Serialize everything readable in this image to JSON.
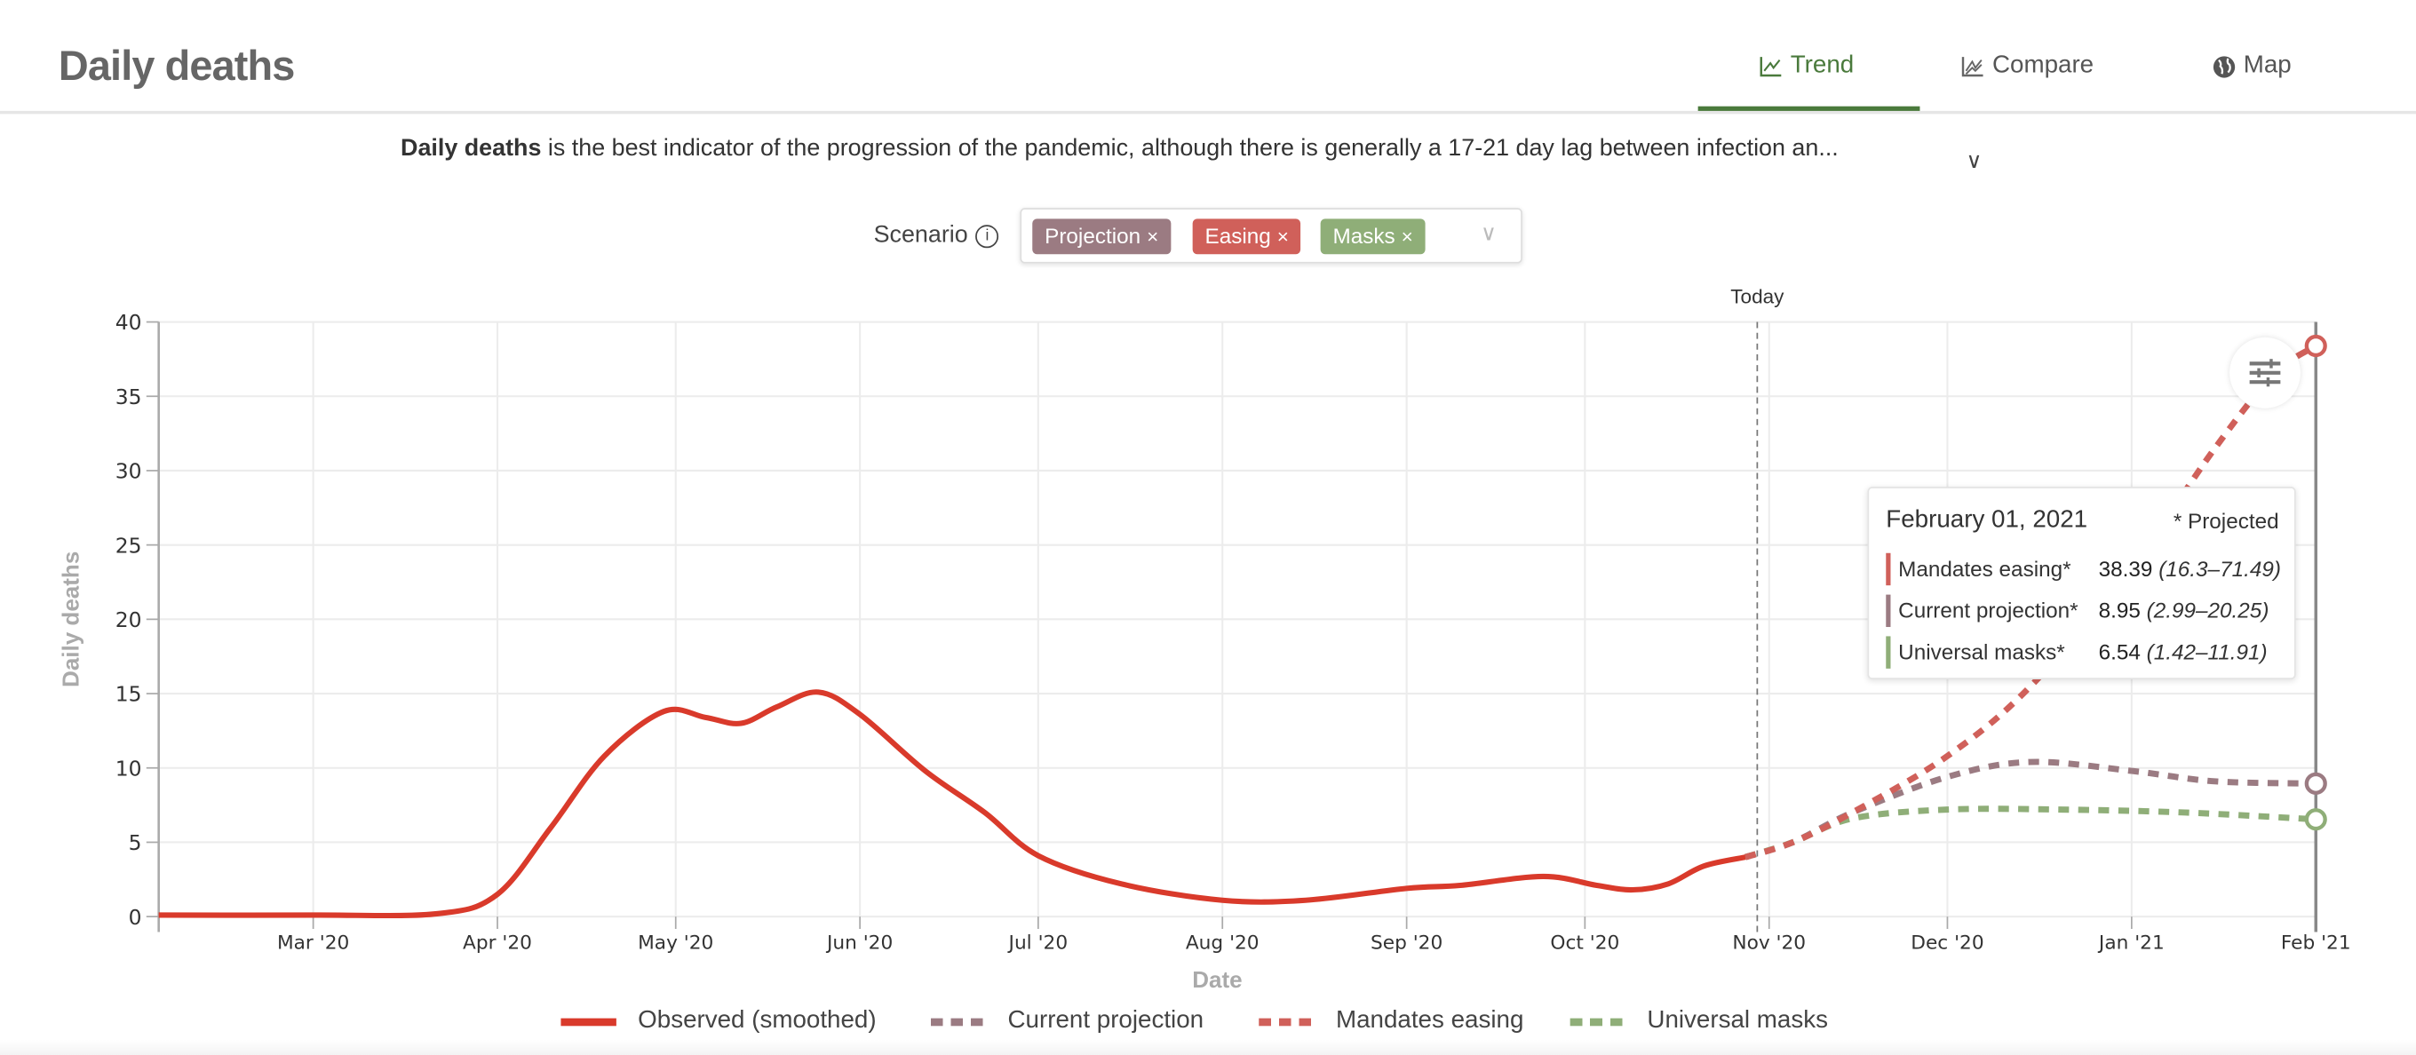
{
  "header": {
    "title": "Daily deaths",
    "tabs": [
      {
        "label": "Trend",
        "icon": "line-chart-icon",
        "active": true
      },
      {
        "label": "Compare",
        "icon": "area-chart-icon"
      },
      {
        "label": "Map",
        "icon": "globe-icon"
      }
    ]
  },
  "description": {
    "bold": "Daily deaths",
    "text": " is the best indicator of the progression of the pandemic, although there is generally a 17-21 day lag between infection an...",
    "expand": "∨"
  },
  "scenario": {
    "label": "Scenario",
    "info": "i",
    "chips": [
      {
        "label": "Projection",
        "color": "#9b7b82"
      },
      {
        "label": "Easing",
        "color": "#d0605a"
      },
      {
        "label": "Masks",
        "color": "#8fae78"
      }
    ],
    "remove": "×",
    "caret": "∨"
  },
  "tooltip": {
    "date": "February 01, 2021",
    "note": "* Projected",
    "rows": [
      {
        "name": "Mandates easing*",
        "value": "38.39",
        "range": "(16.3–71.49)",
        "color": "#d0605a"
      },
      {
        "name": "Current projection*",
        "value": "8.95",
        "range": "(2.99–20.25)",
        "color": "#9b7b82"
      },
      {
        "name": "Universal masks*",
        "value": "6.54",
        "range": "(1.42–11.91)",
        "color": "#8fae78"
      }
    ]
  },
  "chart_data": {
    "type": "line",
    "xlabel": "Date",
    "ylabel": "Daily deaths",
    "ylim": [
      0,
      40
    ],
    "xlim": [
      "2020-02-04",
      "2021-02-01"
    ],
    "yticks": [
      "0",
      "5",
      "10",
      "15",
      "20",
      "25",
      "30",
      "35",
      "40"
    ],
    "xticks": [
      {
        "date": "2020-03-01",
        "label": "Mar '20"
      },
      {
        "date": "2020-04-01",
        "label": "Apr '20"
      },
      {
        "date": "2020-05-01",
        "label": "May '20"
      },
      {
        "date": "2020-06-01",
        "label": "Jun '20"
      },
      {
        "date": "2020-07-01",
        "label": "Jul '20"
      },
      {
        "date": "2020-08-01",
        "label": "Aug '20"
      },
      {
        "date": "2020-09-01",
        "label": "Sep '20"
      },
      {
        "date": "2020-10-01",
        "label": "Oct '20"
      },
      {
        "date": "2020-11-01",
        "label": "Nov '20"
      },
      {
        "date": "2020-12-01",
        "label": "Dec '20"
      },
      {
        "date": "2021-01-01",
        "label": "Jan '21"
      },
      {
        "date": "2021-02-01",
        "label": "Feb '21"
      }
    ],
    "today": {
      "date": "2020-10-30",
      "label": "Today"
    },
    "grid": true,
    "legend": "bottom",
    "series": [
      {
        "name": "Observed (smoothed)",
        "color": "#d93a2b",
        "dashed": false,
        "points": [
          [
            "2020-02-04",
            0.1
          ],
          [
            "2020-03-01",
            0.1
          ],
          [
            "2020-03-22",
            0.2
          ],
          [
            "2020-04-01",
            1.5
          ],
          [
            "2020-04-10",
            6
          ],
          [
            "2020-04-19",
            10.8
          ],
          [
            "2020-04-29",
            13.8
          ],
          [
            "2020-05-06",
            13.4
          ],
          [
            "2020-05-12",
            13.0
          ],
          [
            "2020-05-18",
            14.1
          ],
          [
            "2020-05-25",
            15.1
          ],
          [
            "2020-06-01",
            13.6
          ],
          [
            "2020-06-12",
            9.8
          ],
          [
            "2020-06-22",
            7.0
          ],
          [
            "2020-07-01",
            4.1
          ],
          [
            "2020-07-15",
            2.2
          ],
          [
            "2020-08-01",
            1.1
          ],
          [
            "2020-08-15",
            1.1
          ],
          [
            "2020-09-01",
            1.9
          ],
          [
            "2020-09-10",
            2.1
          ],
          [
            "2020-09-24",
            2.7
          ],
          [
            "2020-10-03",
            2.1
          ],
          [
            "2020-10-09",
            1.8
          ],
          [
            "2020-10-15",
            2.2
          ],
          [
            "2020-10-21",
            3.4
          ],
          [
            "2020-10-28",
            4.0
          ]
        ]
      },
      {
        "name": "Current projection",
        "color": "#9b7b82",
        "dashed": true,
        "points": [
          [
            "2020-10-28",
            4.0
          ],
          [
            "2020-11-05",
            5.0
          ],
          [
            "2020-11-15",
            7.0
          ],
          [
            "2020-12-01",
            9.4
          ],
          [
            "2020-12-15",
            10.4
          ],
          [
            "2021-01-01",
            9.8
          ],
          [
            "2021-01-15",
            9.1
          ],
          [
            "2021-02-01",
            8.95
          ]
        ]
      },
      {
        "name": "Mandates easing",
        "color": "#d0605a",
        "dashed": true,
        "points": [
          [
            "2020-10-28",
            4.0
          ],
          [
            "2020-11-05",
            5.0
          ],
          [
            "2020-11-15",
            7.0
          ],
          [
            "2020-12-01",
            10.8
          ],
          [
            "2020-12-15",
            15.5
          ],
          [
            "2021-01-01",
            23.5
          ],
          [
            "2021-01-15",
            31.5
          ],
          [
            "2021-01-25",
            36.5
          ],
          [
            "2021-02-01",
            38.39
          ]
        ]
      },
      {
        "name": "Universal masks",
        "color": "#8fae78",
        "dashed": true,
        "points": [
          [
            "2020-10-28",
            4.0
          ],
          [
            "2020-11-05",
            5.0
          ],
          [
            "2020-11-15",
            6.6
          ],
          [
            "2020-12-01",
            7.2
          ],
          [
            "2020-12-20",
            7.2
          ],
          [
            "2021-01-10",
            7.0
          ],
          [
            "2021-02-01",
            6.54
          ]
        ]
      }
    ]
  }
}
